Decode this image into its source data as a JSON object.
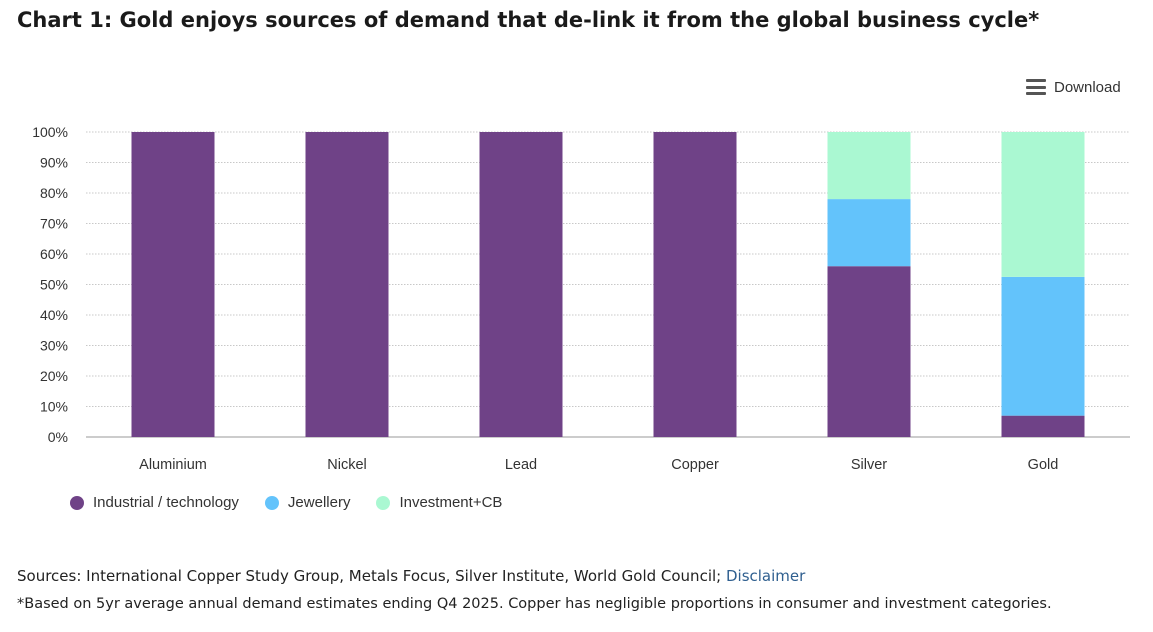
{
  "title": "Chart 1: Gold enjoys sources of demand that de-link it from the global business cycle*",
  "download_label": "Download",
  "sources": {
    "prefix": "Sources: International Copper Study Group, Metals Focus, Silver Institute, World Gold Council; ",
    "link_label": "Disclaimer"
  },
  "footnote": "*Based on 5yr average annual demand estimates ending Q4 2025. Copper has negligible proportions in consumer and investment categories.",
  "colors": {
    "industrial": "#6f4287",
    "jewellery": "#63c3fb",
    "investment": "#aaf8d2"
  },
  "chart_data": {
    "type": "bar",
    "stacked": true,
    "categories": [
      "Aluminium",
      "Nickel",
      "Lead",
      "Copper",
      "Silver",
      "Gold"
    ],
    "series": [
      {
        "name": "Industrial / technology",
        "values": [
          100,
          100,
          100,
          100,
          56,
          7
        ]
      },
      {
        "name": "Jewellery",
        "values": [
          0,
          0,
          0,
          0,
          22,
          45.5
        ]
      },
      {
        "name": "Investment+CB",
        "values": [
          0,
          0,
          0,
          0,
          22,
          47.5
        ]
      }
    ],
    "ylim": [
      0,
      100
    ],
    "yticks": [
      "0%",
      "10%",
      "20%",
      "30%",
      "40%",
      "50%",
      "60%",
      "70%",
      "80%",
      "90%",
      "100%"
    ],
    "grid": true,
    "legend": "bottom-left"
  }
}
